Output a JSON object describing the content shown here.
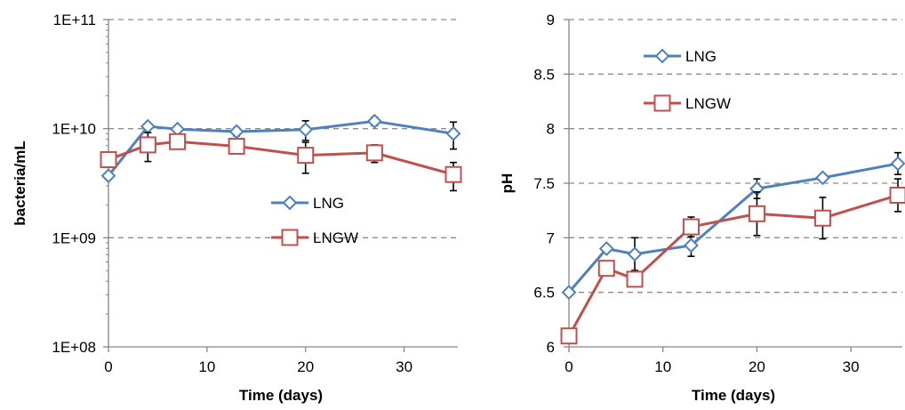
{
  "colors": {
    "LNG": "#4F81BD",
    "LNGW": "#C0504D",
    "grid": "#8C8C8C",
    "axis": "#868686",
    "error_bar": "#000000"
  },
  "chart_data": [
    {
      "type": "line",
      "xlabel": "Time (days)",
      "ylabel": "bacteria/mL",
      "yscale": "log",
      "xlim": [
        0,
        35
      ],
      "ylim": [
        100000000,
        100000000000
      ],
      "x_ticks": [
        0,
        10,
        20,
        30
      ],
      "y_ticks": [
        100000000,
        1000000000,
        10000000000,
        100000000000
      ],
      "y_tick_labels": [
        "1E+08",
        "1E+09",
        "1E+10",
        "1E+11"
      ],
      "grid": "horizontal dashed",
      "legend": "center-right",
      "series": [
        {
          "name": "LNG",
          "marker": "diamond",
          "x": [
            0,
            4,
            7,
            13,
            20,
            27,
            35
          ],
          "y": [
            3700000000,
            10500000000,
            9900000000,
            9400000000,
            9800000000,
            11700000000,
            9000000000
          ],
          "err": [
            0,
            0,
            0,
            800000000,
            2000000000,
            1000000000,
            2500000000
          ]
        },
        {
          "name": "LNGW",
          "marker": "square",
          "x": [
            0,
            4,
            7,
            13,
            20,
            27,
            35
          ],
          "y": [
            5200000000,
            7100000000,
            7600000000,
            6900000000,
            5700000000,
            6000000000,
            3800000000
          ],
          "err": [
            0,
            2100000000,
            1000000000,
            1000000000,
            1800000000,
            1100000000,
            1100000000
          ]
        }
      ]
    },
    {
      "type": "line",
      "xlabel": "Time (days)",
      "ylabel": "pH",
      "xlim": [
        0,
        35
      ],
      "ylim": [
        6,
        9
      ],
      "x_ticks": [
        0,
        10,
        20,
        30
      ],
      "y_ticks": [
        6,
        6.5,
        7,
        7.5,
        8,
        8.5,
        9
      ],
      "y_tick_labels": [
        "6",
        "6.5",
        "7",
        "7.5",
        "8",
        "8.5",
        "9"
      ],
      "grid": "horizontal dashed",
      "legend": "top-left",
      "series": [
        {
          "name": "LNG",
          "marker": "diamond",
          "x": [
            0,
            4,
            7,
            13,
            20,
            27,
            35
          ],
          "y": [
            6.5,
            6.9,
            6.85,
            6.93,
            7.45,
            7.55,
            7.68
          ],
          "err": [
            0,
            0.03,
            0.15,
            0.1,
            0.09,
            0.03,
            0.1
          ]
        },
        {
          "name": "LNGW",
          "marker": "square",
          "x": [
            0,
            4,
            7,
            13,
            20,
            27,
            35
          ],
          "y": [
            6.1,
            6.72,
            6.62,
            7.1,
            7.22,
            7.18,
            7.39
          ],
          "err": [
            0,
            0.05,
            0.05,
            0.09,
            0.2,
            0.19,
            0.15
          ]
        }
      ]
    }
  ]
}
